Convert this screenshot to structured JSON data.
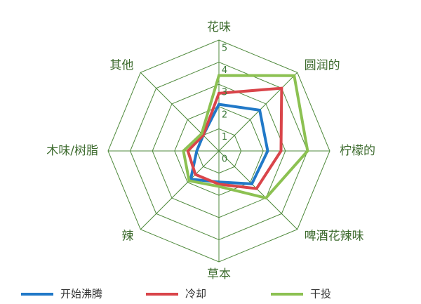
{
  "chart_data": {
    "type": "radar",
    "categories": [
      "花味",
      "圆润的",
      "柠檬的",
      "啤酒花辣味",
      "草本",
      "辣",
      "木味/树脂",
      "其他"
    ],
    "rlim": [
      0,
      5
    ],
    "rticks": [
      0,
      1,
      2,
      3,
      4,
      5
    ],
    "grid": true,
    "series": [
      {
        "name": "开始沸腾",
        "color": "#2179c8",
        "values": [
          2.1,
          2.6,
          2.2,
          2.1,
          1.4,
          1.8,
          1.0,
          1.0
        ]
      },
      {
        "name": "冷却",
        "color": "#d9454a",
        "values": [
          2.6,
          4.0,
          2.8,
          2.4,
          1.5,
          1.5,
          1.4,
          1.0
        ]
      },
      {
        "name": "干投",
        "color": "#8cc152",
        "values": [
          3.4,
          4.8,
          4.0,
          3.0,
          1.6,
          1.9,
          1.6,
          1.1
        ]
      }
    ]
  }
}
